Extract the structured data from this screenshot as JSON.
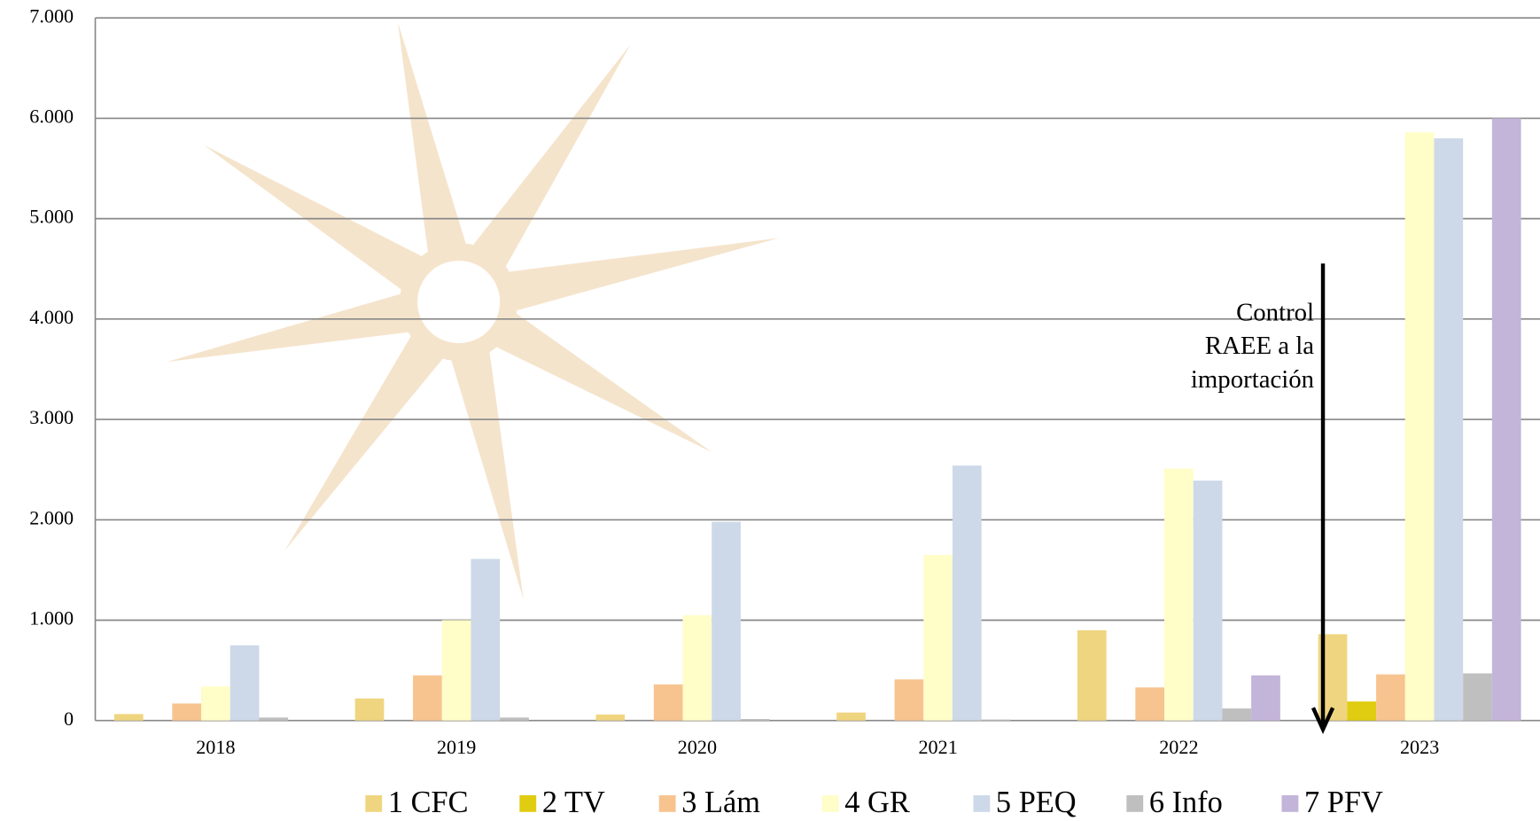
{
  "chart_data": {
    "type": "bar",
    "categories": [
      "2018",
      "2019",
      "2020",
      "2021",
      "2022",
      "2023"
    ],
    "series": [
      {
        "name": "1 CFC",
        "color": "#f0d580",
        "values": [
          65,
          220,
          60,
          80,
          900,
          860
        ]
      },
      {
        "name": "2 TV",
        "color": "#e0cc10",
        "values": [
          0,
          0,
          0,
          0,
          0,
          190
        ]
      },
      {
        "name": "3 Lám",
        "color": "#f7c48f",
        "values": [
          170,
          450,
          360,
          410,
          330,
          460
        ]
      },
      {
        "name": "4 GR",
        "color": "#fffdc8",
        "values": [
          340,
          1000,
          1050,
          1650,
          2510,
          5860
        ]
      },
      {
        "name": "5 PEQ",
        "color": "#cdd9e8",
        "values": [
          750,
          1610,
          1980,
          2540,
          2390,
          5800
        ]
      },
      {
        "name": "6 Info",
        "color": "#bfbfbf",
        "values": [
          30,
          30,
          15,
          10,
          120,
          470
        ]
      },
      {
        "name": "7 PFV",
        "color": "#c3b4d9",
        "values": [
          0,
          0,
          0,
          0,
          450,
          6000
        ]
      }
    ],
    "ylim": [
      0,
      7000
    ],
    "yticks": [
      0,
      {
        "value": 1000,
        "label": "1.000"
      },
      {
        "value": 2000,
        "label": "2.000"
      },
      {
        "value": 3000,
        "label": "3.000"
      },
      {
        "value": 4000,
        "label": "4.000"
      },
      {
        "value": 5000,
        "label": "5.000"
      },
      {
        "value": 6000,
        "label": "6.000"
      },
      {
        "value": 7000,
        "label": "7.000"
      }
    ],
    "grid": true,
    "legend": "bottom",
    "annotation": [
      "Control",
      "RAEE a la",
      "importación"
    ]
  }
}
